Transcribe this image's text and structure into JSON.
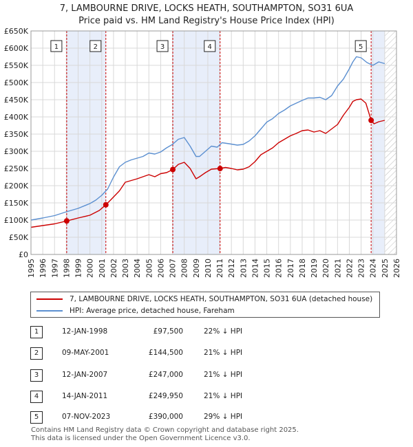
{
  "title_line1": "7, LAMBOURNE DRIVE, LOCKS HEATH, SOUTHAMPTON, SO31 6UA",
  "title_line2": "Price paid vs. HM Land Registry's House Price Index (HPI)",
  "colors": {
    "property": "#cc0000",
    "hpi": "#5b8fd0",
    "shade": "#e8eefa",
    "grid": "#d8d8d8",
    "vline": "#cc0000"
  },
  "chart_data": {
    "type": "line",
    "xlim": [
      1995,
      2026
    ],
    "ylim": [
      0,
      650000
    ],
    "x_ticks": [
      "1995",
      "1996",
      "1997",
      "1998",
      "1999",
      "2000",
      "2001",
      "2002",
      "2003",
      "2004",
      "2005",
      "2006",
      "2007",
      "2008",
      "2009",
      "2010",
      "2011",
      "2012",
      "2013",
      "2014",
      "2015",
      "2016",
      "2017",
      "2018",
      "2019",
      "2020",
      "2021",
      "2022",
      "2023",
      "2024",
      "2025",
      "2026"
    ],
    "y_ticks": [
      {
        "value": 0,
        "label": "£0"
      },
      {
        "value": 50000,
        "label": "£50K"
      },
      {
        "value": 100000,
        "label": "£100K"
      },
      {
        "value": 150000,
        "label": "£150K"
      },
      {
        "value": 200000,
        "label": "£200K"
      },
      {
        "value": 250000,
        "label": "£250K"
      },
      {
        "value": 300000,
        "label": "£300K"
      },
      {
        "value": 350000,
        "label": "£350K"
      },
      {
        "value": 400000,
        "label": "£400K"
      },
      {
        "value": 450000,
        "label": "£450K"
      },
      {
        "value": 500000,
        "label": "£500K"
      },
      {
        "value": 550000,
        "label": "£550K"
      },
      {
        "value": 600000,
        "label": "£600K"
      },
      {
        "value": 650000,
        "label": "£650K"
      }
    ],
    "shaded_periods": [
      [
        1998.03,
        2001.35
      ],
      [
        2007.03,
        2011.04
      ],
      [
        2023.85,
        2025.0
      ]
    ],
    "hatched_period": [
      2025.0,
      2026
    ],
    "series": [
      {
        "name": "7, LAMBOURNE DRIVE, LOCKS HEATH, SOUTHAMPTON, SO31 6UA (detached house)",
        "color": "#cc0000",
        "x": [
          1995.0,
          1996.0,
          1997.0,
          1998.03,
          1999.0,
          2000.0,
          2000.8,
          2001.35,
          2001.8,
          2002.5,
          2003.0,
          2004.0,
          2004.5,
          2005.0,
          2005.5,
          2006.0,
          2006.5,
          2007.03,
          2007.5,
          2008.0,
          2008.5,
          2009.0,
          2009.3,
          2009.8,
          2010.3,
          2011.04,
          2011.5,
          2012.0,
          2012.5,
          2013.0,
          2013.5,
          2014.0,
          2014.5,
          2015.0,
          2015.5,
          2016.0,
          2016.5,
          2017.0,
          2017.5,
          2018.0,
          2018.5,
          2019.0,
          2019.5,
          2020.0,
          2020.5,
          2021.0,
          2021.5,
          2022.0,
          2022.3,
          2022.6,
          2023.0,
          2023.4,
          2023.85,
          2024.1,
          2024.5,
          2025.0
        ],
        "y": [
          79000,
          84000,
          89000,
          97500,
          106000,
          114000,
          128000,
          144500,
          160000,
          185000,
          210000,
          220000,
          226000,
          232000,
          226000,
          235000,
          238000,
          247000,
          262000,
          268000,
          250000,
          220000,
          226000,
          238000,
          248000,
          249950,
          253000,
          250000,
          246000,
          248000,
          255000,
          270000,
          290000,
          300000,
          310000,
          325000,
          335000,
          345000,
          352000,
          360000,
          362000,
          356000,
          360000,
          352000,
          365000,
          378000,
          405000,
          428000,
          445000,
          450000,
          452000,
          440000,
          390000,
          380000,
          386000,
          390000
        ]
      },
      {
        "name": "HPI: Average price, detached house, Fareham",
        "color": "#5b8fd0",
        "x": [
          1995.0,
          1996.0,
          1997.0,
          1998.0,
          1999.0,
          2000.0,
          2000.5,
          2001.0,
          2001.5,
          2002.0,
          2002.5,
          2003.0,
          2003.5,
          2004.0,
          2004.5,
          2005.0,
          2005.5,
          2006.0,
          2006.5,
          2007.0,
          2007.5,
          2008.0,
          2008.5,
          2009.0,
          2009.3,
          2009.8,
          2010.3,
          2010.8,
          2011.2,
          2011.8,
          2012.5,
          2013.0,
          2013.5,
          2014.0,
          2014.5,
          2015.0,
          2015.5,
          2016.0,
          2016.5,
          2017.0,
          2017.5,
          2018.0,
          2018.5,
          2019.0,
          2019.5,
          2020.0,
          2020.5,
          2021.0,
          2021.5,
          2022.0,
          2022.3,
          2022.6,
          2023.0,
          2023.5,
          2024.0,
          2024.5,
          2025.0
        ],
        "y": [
          100000,
          106000,
          113000,
          124000,
          134000,
          148000,
          158000,
          172000,
          190000,
          225000,
          255000,
          268000,
          275000,
          280000,
          285000,
          295000,
          292000,
          298000,
          310000,
          320000,
          335000,
          340000,
          315000,
          285000,
          285000,
          300000,
          315000,
          312000,
          325000,
          322000,
          318000,
          320000,
          330000,
          345000,
          365000,
          385000,
          395000,
          410000,
          420000,
          432000,
          440000,
          448000,
          455000,
          455000,
          457000,
          450000,
          462000,
          490000,
          510000,
          540000,
          560000,
          575000,
          572000,
          558000,
          550000,
          560000,
          555000
        ]
      }
    ],
    "sales": [
      {
        "label": "1",
        "x": 1998.03,
        "y": 97500
      },
      {
        "label": "2",
        "x": 2001.35,
        "y": 144500
      },
      {
        "label": "3",
        "x": 2007.03,
        "y": 247000
      },
      {
        "label": "4",
        "x": 2011.04,
        "y": 249950
      },
      {
        "label": "5",
        "x": 2023.85,
        "y": 390000
      }
    ],
    "legend_position": "bottom"
  },
  "legend": {
    "property": "7, LAMBOURNE DRIVE, LOCKS HEATH, SOUTHAMPTON, SO31 6UA (detached house)",
    "hpi": "HPI: Average price, detached house, Fareham"
  },
  "transactions": [
    {
      "num": "1",
      "date": "12-JAN-1998",
      "price": "£97,500",
      "hpi": "22% ↓ HPI"
    },
    {
      "num": "2",
      "date": "09-MAY-2001",
      "price": "£144,500",
      "hpi": "21% ↓ HPI"
    },
    {
      "num": "3",
      "date": "12-JAN-2007",
      "price": "£247,000",
      "hpi": "21% ↓ HPI"
    },
    {
      "num": "4",
      "date": "14-JAN-2011",
      "price": "£249,950",
      "hpi": "21% ↓ HPI"
    },
    {
      "num": "5",
      "date": "07-NOV-2023",
      "price": "£390,000",
      "hpi": "29% ↓ HPI"
    }
  ],
  "footer_line1": "Contains HM Land Registry data © Crown copyright and database right 2025.",
  "footer_line2": "This data is licensed under the Open Government Licence v3.0."
}
